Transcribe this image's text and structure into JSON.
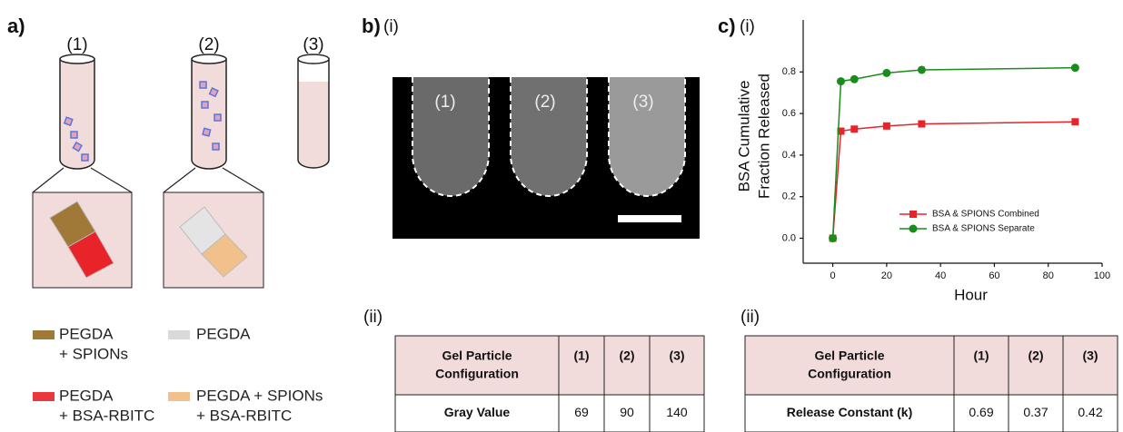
{
  "panel_a": {
    "label": "a)",
    "tube_labels": [
      "(1)",
      "(2)",
      "(3)"
    ],
    "legend": [
      {
        "lines": [
          "PEGDA",
          "+ SPIONs"
        ],
        "color": "#a07838"
      },
      {
        "lines": [
          "PEGDA"
        ],
        "color": "#d9d9d9"
      },
      {
        "lines": [
          "PEGDA",
          "+ BSA-RBITC"
        ],
        "color": "#e8383e"
      },
      {
        "lines": [
          "PEGDA + SPIONs",
          "+ BSA-RBITC"
        ],
        "color": "#f2c08a"
      }
    ]
  },
  "panel_b": {
    "label": "b)",
    "sub_i": "(i)",
    "image_labels": [
      "(1)",
      "(2)",
      "(3)"
    ],
    "sub_ii": "(ii)",
    "table": {
      "header": [
        [
          "Gel Particle",
          "Configuration"
        ],
        "(1)",
        "(2)",
        "(3)"
      ],
      "row": [
        "Gray Value",
        69,
        90,
        140
      ]
    }
  },
  "panel_c": {
    "label": "c)",
    "sub_i": "(i)",
    "sub_ii": "(ii)",
    "table": {
      "header": [
        [
          "Gel Particle",
          "Configuration"
        ],
        "(1)",
        "(2)",
        "(3)"
      ],
      "row": [
        "Release Constant (k)",
        0.69,
        0.37,
        0.42
      ]
    }
  },
  "chart_data": {
    "type": "line",
    "ylabel": [
      "BSA Cumulative",
      "Fraction Released"
    ],
    "xlabel": "Hour",
    "x": [
      0,
      3,
      8,
      20,
      33,
      90
    ],
    "series": [
      {
        "name": "BSA & SPIONS Combined",
        "color": "#e8232a",
        "marker": "square",
        "values": [
          0,
          0.515,
          0.525,
          0.54,
          0.55,
          0.56
        ]
      },
      {
        "name": "BSA & SPIONS Separate",
        "color": "#1a8c1a",
        "marker": "circle",
        "values": [
          0,
          0.755,
          0.765,
          0.795,
          0.81,
          0.82
        ]
      }
    ],
    "xlim": [
      -11,
      100
    ],
    "ylim": [
      -0.12,
      1.05
    ],
    "xticks": [
      0,
      20,
      40,
      60,
      80,
      100
    ],
    "yticks": [
      {
        "value": 0,
        "label": "0.0"
      },
      0.2,
      0.4,
      0.6,
      0.8
    ]
  }
}
